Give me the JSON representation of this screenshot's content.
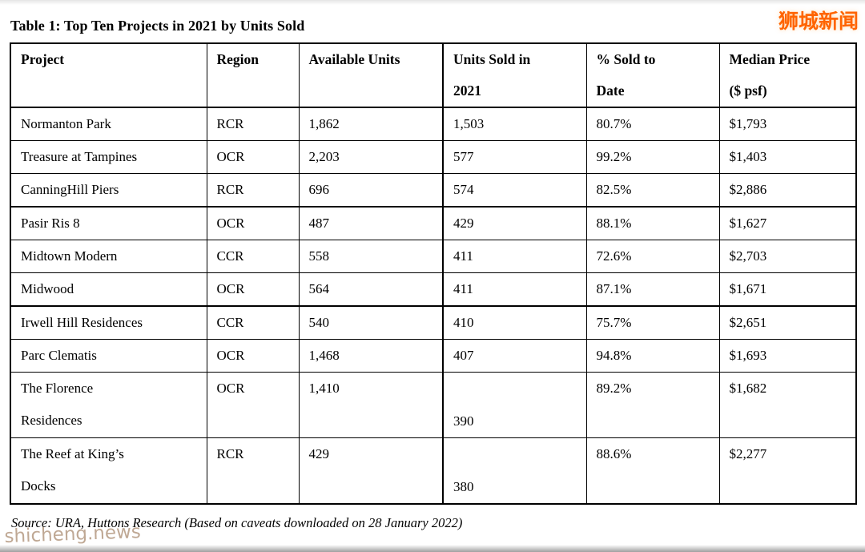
{
  "page": {
    "title": "Table 1: Top Ten Projects in 2021 by Units Sold",
    "watermark_top_right": "狮城新闻",
    "watermark_bottom_left": "shicheng.news",
    "source_note": "Source: URA, Huttons Research (Based on caveats downloaded on 28 January 2022)",
    "accent_orange": "#ff6400",
    "border_color": "#000000"
  },
  "table": {
    "headers": [
      "Project",
      "Region",
      "Available Units",
      "Units Sold in\n2021",
      "% Sold to\nDate",
      "Median Price\n($ psf)"
    ],
    "rows": [
      {
        "project": "Normanton Park",
        "region": "RCR",
        "available_units": "1,862",
        "units_sold_2021": "1,503",
        "pct_sold_to_date": "80.7%",
        "median_price_psf": "$1,793",
        "group_end": false
      },
      {
        "project": "Treasure at Tampines",
        "region": "OCR",
        "available_units": "2,203",
        "units_sold_2021": "577",
        "pct_sold_to_date": "99.2%",
        "median_price_psf": "$1,403",
        "group_end": false
      },
      {
        "project": "CanningHill Piers",
        "region": "RCR",
        "available_units": "696",
        "units_sold_2021": "574",
        "pct_sold_to_date": "82.5%",
        "median_price_psf": "$2,886",
        "group_end": true
      },
      {
        "project": "Pasir Ris 8",
        "region": "OCR",
        "available_units": "487",
        "units_sold_2021": "429",
        "pct_sold_to_date": "88.1%",
        "median_price_psf": "$1,627",
        "group_end": false
      },
      {
        "project": "Midtown Modern",
        "region": "CCR",
        "available_units": "558",
        "units_sold_2021": "411",
        "pct_sold_to_date": "72.6%",
        "median_price_psf": "$2,703",
        "group_end": false
      },
      {
        "project": "Midwood",
        "region": "OCR",
        "available_units": "564",
        "units_sold_2021": "411",
        "pct_sold_to_date": "87.1%",
        "median_price_psf": "$1,671",
        "group_end": true
      },
      {
        "project": "Irwell Hill Residences",
        "region": "CCR",
        "available_units": "540",
        "units_sold_2021": "410",
        "pct_sold_to_date": "75.7%",
        "median_price_psf": "$2,651",
        "group_end": false
      },
      {
        "project": "Parc Clematis",
        "region": "OCR",
        "available_units": "1,468",
        "units_sold_2021": "407",
        "pct_sold_to_date": "94.8%",
        "median_price_psf": "$1,693",
        "group_end": false
      },
      {
        "project": "The Florence\nResidences",
        "region": "OCR",
        "available_units": "1,410",
        "units_sold_2021": "390",
        "pct_sold_to_date": "89.2%",
        "median_price_psf": "$1,682",
        "group_end": false
      },
      {
        "project": "The Reef at King’s\nDocks",
        "region": "RCR",
        "available_units": "429",
        "units_sold_2021": "380",
        "pct_sold_to_date": "88.6%",
        "median_price_psf": "$2,277",
        "group_end": false
      }
    ]
  }
}
